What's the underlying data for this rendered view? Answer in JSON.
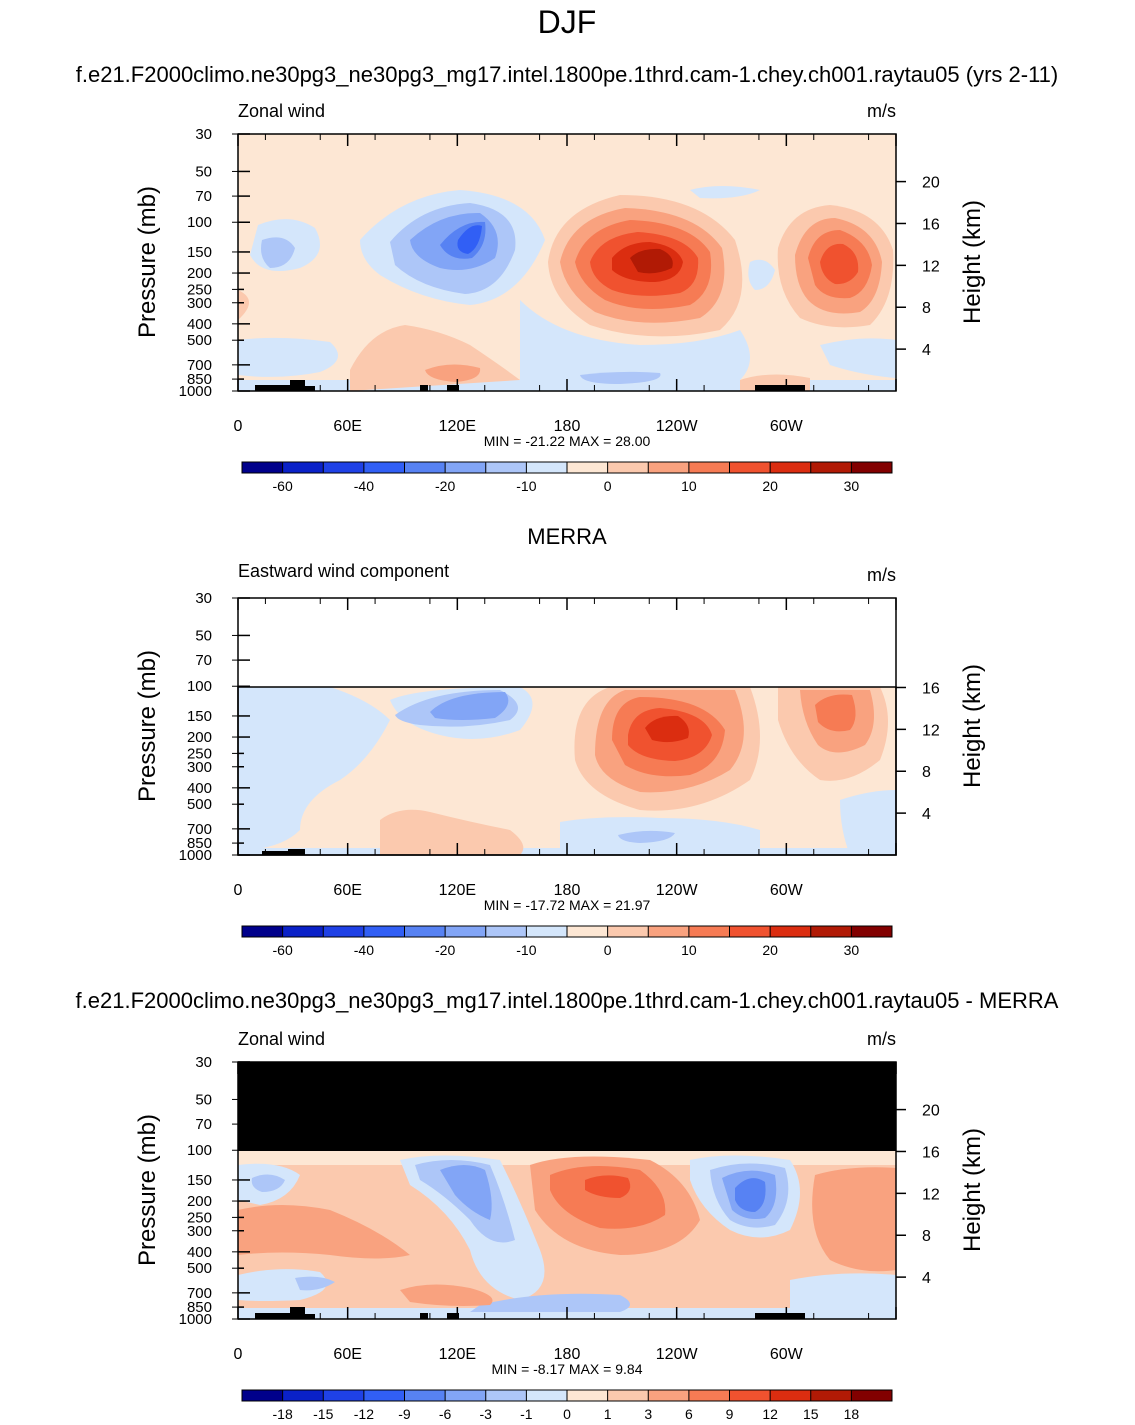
{
  "figure_title": "DJF",
  "chart_data": [
    {
      "type": "contour",
      "title": "f.e21.F2000climo.ne30pg3_ne30pg3_mg17.intel.1800pe.1thrd.cam-1.chey.ch001.raytau05 (yrs 2-11)",
      "subtitle_left": "Zonal wind",
      "units": "m/s",
      "ylabel": "Pressure (mb)",
      "ylabel_right": "Height (km)",
      "xticks": [
        "0",
        "60E",
        "120E",
        "180",
        "120W",
        "60W"
      ],
      "yticks": [
        "30",
        "50",
        "70",
        "100",
        "150",
        "200",
        "250",
        "300",
        "400",
        "500",
        "700",
        "850",
        "1000"
      ],
      "yticks_right": [
        "20",
        "16",
        "12",
        "8",
        "4"
      ],
      "stats": "MIN = -21.22  MAX =  28.00",
      "min": -21.22,
      "max": 28.0,
      "colorbar_labels": [
        "-60",
        "-40",
        "-20",
        "-10",
        "0",
        "10",
        "20",
        "30"
      ],
      "colorbar_colors": [
        "#00008b",
        "#0a21c8",
        "#1f41e6",
        "#315ff5",
        "#5782f3",
        "#82a5f6",
        "#adc6f8",
        "#d4e6fb",
        "#fde7d4",
        "#fbc9ae",
        "#f9a27f",
        "#f67b54",
        "#f0522f",
        "#db2d10",
        "#b11a05",
        "#820000"
      ]
    },
    {
      "type": "contour",
      "title": "MERRA",
      "subtitle_left": "Eastward wind component",
      "units": "m/s",
      "ylabel": "Pressure (mb)",
      "ylabel_right": "Height (km)",
      "xticks": [
        "0",
        "60E",
        "120E",
        "180",
        "120W",
        "60W"
      ],
      "yticks": [
        "30",
        "50",
        "70",
        "100",
        "150",
        "200",
        "250",
        "300",
        "400",
        "500",
        "700",
        "850",
        "1000"
      ],
      "yticks_right": [
        "16",
        "12",
        "8",
        "4"
      ],
      "stats": "MIN = -17.72  MAX =  21.97",
      "min": -17.72,
      "max": 21.97,
      "colorbar_labels": [
        "-60",
        "-40",
        "-20",
        "-10",
        "0",
        "10",
        "20",
        "30"
      ],
      "colorbar_colors": [
        "#00008b",
        "#0a21c8",
        "#1f41e6",
        "#315ff5",
        "#5782f3",
        "#82a5f6",
        "#adc6f8",
        "#d4e6fb",
        "#fde7d4",
        "#fbc9ae",
        "#f9a27f",
        "#f67b54",
        "#f0522f",
        "#db2d10",
        "#b11a05",
        "#820000"
      ]
    },
    {
      "type": "contour",
      "title": "f.e21.F2000climo.ne30pg3_ne30pg3_mg17.intel.1800pe.1thrd.cam-1.chey.ch001.raytau05 - MERRA",
      "subtitle_left": "Zonal wind",
      "units": "m/s",
      "ylabel": "Pressure (mb)",
      "ylabel_right": "Height (km)",
      "xticks": [
        "0",
        "60E",
        "120E",
        "180",
        "120W",
        "60W"
      ],
      "yticks": [
        "30",
        "50",
        "70",
        "100",
        "150",
        "200",
        "250",
        "300",
        "400",
        "500",
        "700",
        "850",
        "1000"
      ],
      "yticks_right": [
        "20",
        "16",
        "12",
        "8",
        "4"
      ],
      "stats": "MIN =  -8.17  MAX =   9.84",
      "min": -8.17,
      "max": 9.84,
      "colorbar_labels": [
        "-18",
        "-15",
        "-12",
        "-9",
        "-6",
        "-3",
        "-1",
        "0",
        "1",
        "3",
        "6",
        "9",
        "12",
        "15",
        "18"
      ],
      "colorbar_colors": [
        "#00008b",
        "#0a21c8",
        "#1f41e6",
        "#315ff5",
        "#5782f3",
        "#82a5f6",
        "#adc6f8",
        "#d4e6fb",
        "#fde7d4",
        "#fbc9ae",
        "#f9a27f",
        "#f67b54",
        "#f0522f",
        "#db2d10",
        "#b11a05",
        "#820000"
      ]
    }
  ]
}
